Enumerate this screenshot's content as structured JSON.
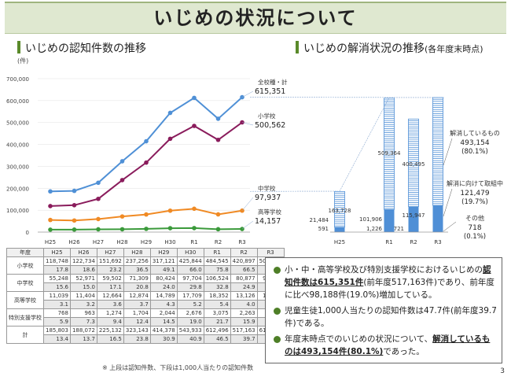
{
  "page_title": "いじめの状況について",
  "left_section": {
    "title": "いじめの認知件数の推移"
  },
  "right_section": {
    "title": "いじめの解消状況の推移",
    "title_note": "(各年度末時点)"
  },
  "chart_data": [
    {
      "type": "line",
      "ylabel": "(件)",
      "ylim": [
        0,
        700000
      ],
      "yticks": [
        "0",
        "100,000",
        "200,000",
        "300,000",
        "400,000",
        "500,000",
        "600,000",
        "700,000"
      ],
      "categories": [
        "H25",
        "H26",
        "H27",
        "H28",
        "H29",
        "H30",
        "R1",
        "R2",
        "R3"
      ],
      "series": [
        {
          "name": "全校種・計",
          "color": "#4f90d6",
          "values": [
            185803,
            188072,
            225132,
            323143,
            414378,
            543933,
            612496,
            517163,
            615351
          ],
          "end_label": "615,351"
        },
        {
          "name": "小学校",
          "color": "#8a1c5c",
          "values": [
            118748,
            122734,
            151692,
            237256,
            317121,
            425844,
            484545,
            420897,
            500562
          ],
          "end_label": "500,562"
        },
        {
          "name": "中学校",
          "color": "#f08a24",
          "values": [
            55248,
            52971,
            59502,
            71309,
            80424,
            97704,
            106524,
            80877,
            97937
          ],
          "end_label": "97,937"
        },
        {
          "name": "高等学校",
          "color": "#3b9a3b",
          "values": [
            11039,
            11404,
            12664,
            12874,
            14789,
            17709,
            18352,
            13126,
            14157
          ],
          "end_label": "14,157"
        }
      ]
    },
    {
      "type": "bar",
      "ylim": [
        0,
        615351
      ],
      "categories": [
        "H25",
        "R1",
        "R2",
        "R3"
      ],
      "series": [
        {
          "name": "解消しているもの",
          "values": [
            163728,
            509364,
            400495,
            493154
          ]
        },
        {
          "name": "解消に向けて取組中",
          "values": [
            21484,
            101906,
            115947,
            121479
          ]
        },
        {
          "name": "その他",
          "values": [
            591,
            1226,
            721,
            718
          ]
        }
      ],
      "bar_labels": [
        {
          "top": "163,728",
          "mid": "21,484",
          "low": "591"
        },
        {
          "top": "509,364",
          "mid": "101,906",
          "low": "1,226"
        },
        {
          "top": "400,495",
          "mid": "115,947",
          "low": "721"
        },
        {
          "top": "",
          "mid": "",
          "low": ""
        }
      ],
      "legend": [
        {
          "name": "解消しているもの",
          "value": "493,154",
          "pct": "(80.1%)"
        },
        {
          "name": "解消に向けて取組中",
          "value": "121,479",
          "pct": "(19.7%)"
        },
        {
          "name": "その他",
          "value": "718",
          "pct": "(0.1%)"
        }
      ]
    }
  ],
  "table": {
    "header": [
      "年度",
      "H25",
      "H26",
      "H27",
      "H28",
      "H29",
      "H30",
      "R1",
      "R2",
      "R3"
    ],
    "rows": [
      {
        "label": "小学校",
        "counts": [
          "118,748",
          "122,734",
          "151,692",
          "237,256",
          "317,121",
          "425,844",
          "484,545",
          "420,897",
          "500,562"
        ],
        "rates": [
          "17.8",
          "18.6",
          "23.2",
          "36.5",
          "49.1",
          "66.0",
          "75.8",
          "66.5",
          "79.9"
        ]
      },
      {
        "label": "中学校",
        "counts": [
          "55,248",
          "52,971",
          "59,502",
          "71,309",
          "80,424",
          "97,704",
          "106,524",
          "80,877",
          "97,937"
        ],
        "rates": [
          "15.6",
          "15.0",
          "17.1",
          "20.8",
          "24.0",
          "29.8",
          "32.8",
          "24.9",
          "30.0"
        ]
      },
      {
        "label": "高等学校",
        "counts": [
          "11,039",
          "11,404",
          "12,664",
          "12,874",
          "14,789",
          "17,709",
          "18,352",
          "13,126",
          "14,157"
        ],
        "rates": [
          "3.1",
          "3.2",
          "3.6",
          "3.7",
          "4.3",
          "5.2",
          "5.4",
          "4.0",
          "4.4"
        ]
      },
      {
        "label": "特別支援学校",
        "counts": [
          "768",
          "963",
          "1,274",
          "1,704",
          "2,044",
          "2,676",
          "3,075",
          "2,263",
          "2,695"
        ],
        "rates": [
          "5.9",
          "7.3",
          "9.4",
          "12.4",
          "14.5",
          "19.0",
          "21.7",
          "15.9",
          "18.4"
        ]
      },
      {
        "label": "計",
        "counts": [
          "185,803",
          "188,072",
          "225,132",
          "323,143",
          "414,378",
          "543,933",
          "612,496",
          "517,163",
          "615,351"
        ],
        "rates": [
          "13.4",
          "13.7",
          "16.5",
          "23.8",
          "30.9",
          "40.9",
          "46.5",
          "39.7",
          "47.7"
        ]
      }
    ],
    "note": "※ 上段は認知件数、下段は1,000人当たりの認知件数"
  },
  "summary": {
    "b1_a": "小・中・高等学校及び特別支援学校におけるいじめの",
    "b1_em": "認知件数は615,351件",
    "b1_b": "(前年度517,163件)であり、前年度に比べ98,188件(19.0%)増加している。",
    "b2": "児童生徒1,000人当たりの認知件数は47.7件(前年度39.7件)である。",
    "b3_a": "年度末時点でのいじめの状況について、",
    "b3_em": "解消しているものは493,154件(80.1%)",
    "b3_b": "であった。",
    "bullet_color": "#4e7f27"
  },
  "page_number": "3"
}
